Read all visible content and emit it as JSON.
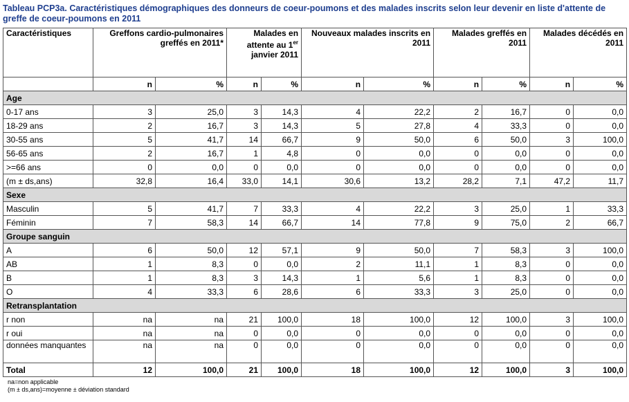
{
  "title": "Tableau PCP3a. Caractéristiques démographiques des donneurs de coeur-poumons et des malades inscrits selon leur devenir en liste d'attente de greffe de coeur-poumons en 2011",
  "headers": {
    "characteristics": "Caractéristiques",
    "col1": "Greffons cardio-pulmonaires greffés en 2011*",
    "col2_a": "Malades en attente au 1",
    "col2_sup": "er",
    "col2_b": " janvier 2011",
    "col3": "Nouveaux malades inscrits en 2011",
    "col4": "Malades greffés en 2011",
    "col5": "Malades décédés en 2011",
    "n": "n",
    "pct": "%"
  },
  "sections": [
    {
      "title": "Age",
      "rows": [
        {
          "label": "0-17 ans",
          "values": [
            "3",
            "25,0",
            "3",
            "14,3",
            "4",
            "22,2",
            "2",
            "16,7",
            "0",
            "0,0"
          ]
        },
        {
          "label": "18-29 ans",
          "values": [
            "2",
            "16,7",
            "3",
            "14,3",
            "5",
            "27,8",
            "4",
            "33,3",
            "0",
            "0,0"
          ]
        },
        {
          "label": "30-55 ans",
          "values": [
            "5",
            "41,7",
            "14",
            "66,7",
            "9",
            "50,0",
            "6",
            "50,0",
            "3",
            "100,0"
          ]
        },
        {
          "label": "56-65 ans",
          "values": [
            "2",
            "16,7",
            "1",
            "4,8",
            "0",
            "0,0",
            "0",
            "0,0",
            "0",
            "0,0"
          ]
        },
        {
          "label": ">=66 ans",
          "values": [
            "0",
            "0,0",
            "0",
            "0,0",
            "0",
            "0,0",
            "0",
            "0,0",
            "0",
            "0,0"
          ]
        },
        {
          "label": "(m ± ds,ans)",
          "values": [
            "32,8",
            "16,4",
            "33,0",
            "14,1",
            "30,6",
            "13,2",
            "28,2",
            "7,1",
            "47,2",
            "11,7"
          ]
        }
      ]
    },
    {
      "title": "Sexe",
      "rows": [
        {
          "label": "Masculin",
          "values": [
            "5",
            "41,7",
            "7",
            "33,3",
            "4",
            "22,2",
            "3",
            "25,0",
            "1",
            "33,3"
          ]
        },
        {
          "label": "Féminin",
          "values": [
            "7",
            "58,3",
            "14",
            "66,7",
            "14",
            "77,8",
            "9",
            "75,0",
            "2",
            "66,7"
          ]
        }
      ]
    },
    {
      "title": "Groupe sanguin",
      "rows": [
        {
          "label": "A",
          "values": [
            "6",
            "50,0",
            "12",
            "57,1",
            "9",
            "50,0",
            "7",
            "58,3",
            "3",
            "100,0"
          ]
        },
        {
          "label": "AB",
          "values": [
            "1",
            "8,3",
            "0",
            "0,0",
            "2",
            "11,1",
            "1",
            "8,3",
            "0",
            "0,0"
          ]
        },
        {
          "label": "B",
          "values": [
            "1",
            "8,3",
            "3",
            "14,3",
            "1",
            "5,6",
            "1",
            "8,3",
            "0",
            "0,0"
          ]
        },
        {
          "label": "O",
          "values": [
            "4",
            "33,3",
            "6",
            "28,6",
            "6",
            "33,3",
            "3",
            "25,0",
            "0",
            "0,0"
          ]
        }
      ]
    },
    {
      "title": "Retransplantation",
      "rows": [
        {
          "label": "r non",
          "values": [
            "na",
            "na",
            "21",
            "100,0",
            "18",
            "100,0",
            "12",
            "100,0",
            "3",
            "100,0"
          ]
        },
        {
          "label": "r oui",
          "values": [
            "na",
            "na",
            "0",
            "0,0",
            "0",
            "0,0",
            "0",
            "0,0",
            "0",
            "0,0"
          ]
        },
        {
          "label": "données manquantes",
          "tall": true,
          "values": [
            "na",
            "na",
            "0",
            "0,0",
            "0",
            "0,0",
            "0",
            "0,0",
            "0",
            "0,0"
          ]
        }
      ]
    }
  ],
  "total": {
    "label": "Total",
    "values": [
      "12",
      "100,0",
      "21",
      "100,0",
      "18",
      "100,0",
      "12",
      "100,0",
      "3",
      "100,0"
    ]
  },
  "footnotes": [
    "na=non applicable",
    "(m ± ds,ans)=moyenne ± déviation standard"
  ]
}
